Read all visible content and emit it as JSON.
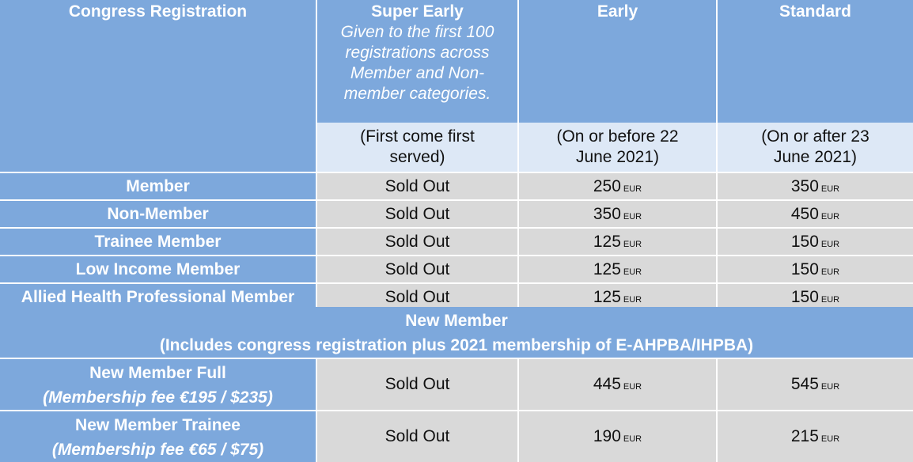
{
  "header": {
    "col1": "Congress Registration",
    "col2_title": "Super Early",
    "col2_note": [
      "Given to the first 100",
      "registrations across",
      "Member and Non-",
      "member categories."
    ],
    "col3_title": "Early",
    "col4_title": "Standard"
  },
  "subheader": {
    "col2": [
      "(First come first",
      "served)"
    ],
    "col3": [
      "(On or before 22",
      "June 2021)"
    ],
    "col4": [
      "(On or after 23",
      "June 2021)"
    ]
  },
  "currency_unit": "EUR",
  "rows": [
    {
      "label": "Member",
      "super_early": "Sold Out",
      "early": "250",
      "standard": "350"
    },
    {
      "label": "Non-Member",
      "super_early": "Sold Out",
      "early": "350",
      "standard": "450"
    },
    {
      "label": "Trainee Member",
      "super_early": "Sold Out",
      "early": "125",
      "standard": "150"
    },
    {
      "label": "Low Income Member",
      "super_early": "Sold Out",
      "early": "125",
      "standard": "150"
    },
    {
      "label": "Allied Health Professional Member",
      "super_early": "Sold Out",
      "early": "125",
      "standard": "150"
    }
  ],
  "new_member": {
    "title": "New Member",
    "subtitle": "(Includes congress registration plus 2021 membership of E-AHPBA/IHPBA)",
    "rows": [
      {
        "label": "New Member Full",
        "note": "(Membership fee €195 / $235)",
        "super_early": "Sold Out",
        "early": "445",
        "standard": "545"
      },
      {
        "label": "New Member Trainee",
        "note": "(Membership fee €65 / $75)",
        "super_early": "Sold Out",
        "early": "190",
        "standard": "215"
      }
    ]
  }
}
